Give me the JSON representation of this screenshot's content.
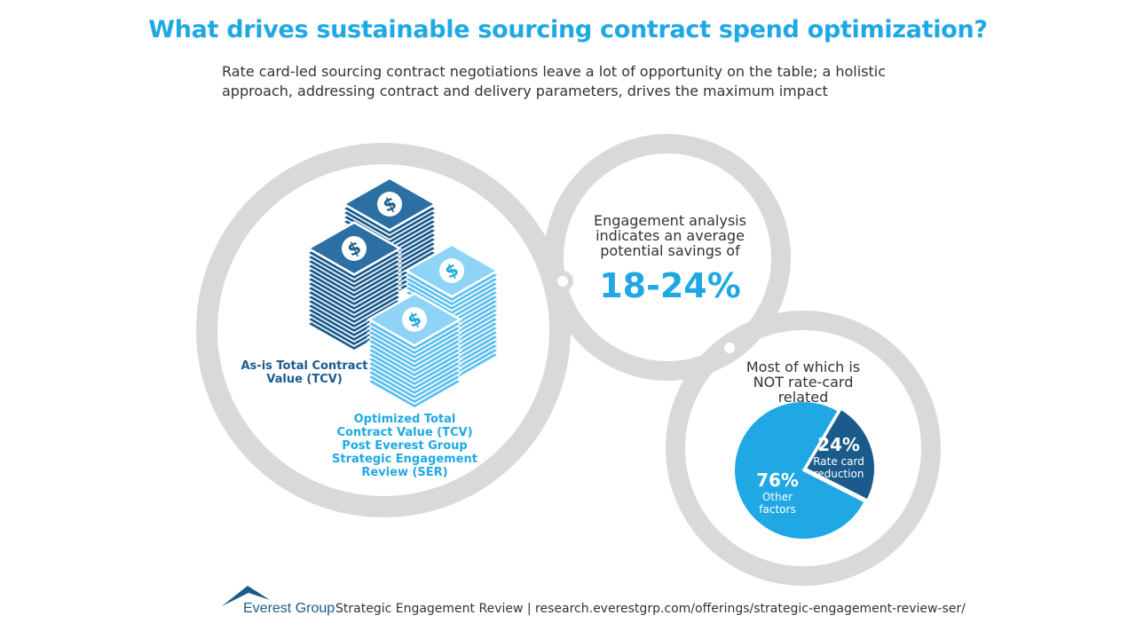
{
  "header": {
    "title": "What drives sustainable sourcing contract spend optimization?",
    "subtitle": "Rate card-led sourcing contract negotiations leave a lot of opportunity on the table; a holistic approach, addressing contract and delivery parameters, drives the maximum impact"
  },
  "left_circle": {
    "asis_label": "As-is Total Contract Value (TCV)",
    "optimized_label": "Optimized Total Contract Value (TCV) Post Everest Group Strategic Engagement Review (SER)",
    "currency_symbol": "$"
  },
  "middle_circle": {
    "text": "Engagement analysis indicates an average potential savings of",
    "value": "18-24%"
  },
  "right_circle": {
    "text": "Most of which is NOT rate-card related"
  },
  "chart_data": {
    "type": "pie",
    "title": "Most of which is NOT rate-card related",
    "slices": [
      {
        "label": "Rate card reduction",
        "value": 24,
        "display": "24%",
        "color": "#1a5b8c"
      },
      {
        "label": "Other factors",
        "value": 76,
        "display": "76%",
        "color": "#1fa8e4"
      }
    ]
  },
  "footer": {
    "brand": "Everest Group",
    "text": "Strategic Engagement Review | research.everestgrp.com/offerings/strategic-engagement-review-ser/"
  },
  "colors": {
    "accent": "#1fa8e4",
    "dark_blue": "#1a5b8c",
    "ring_gray": "#d9d9d9"
  }
}
